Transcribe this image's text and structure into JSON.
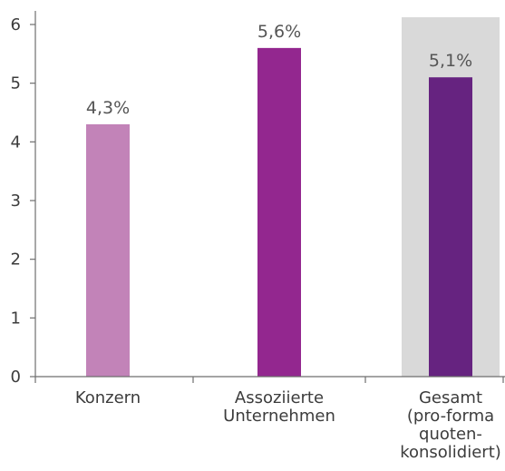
{
  "chart_data": {
    "type": "bar",
    "categories": [
      [
        "Konzern"
      ],
      [
        "Assoziierte",
        "Unternehmen"
      ],
      [
        "Gesamt",
        "(pro-forma",
        "quoten-",
        "konsolidiert)"
      ]
    ],
    "values": [
      4.3,
      5.6,
      5.1
    ],
    "value_labels": [
      "4,3%",
      "5,6%",
      "5,1%"
    ],
    "bar_colors": [
      "#c283b8",
      "#93278f",
      "#662380"
    ],
    "highlight_category": 2,
    "highlight_color": "#d9d9d9",
    "yticks": [
      0,
      1,
      2,
      3,
      4,
      5,
      6
    ],
    "ylim": [
      0,
      6
    ],
    "title": "",
    "xlabel": "",
    "ylabel": "",
    "grid": false,
    "legend": "none"
  }
}
